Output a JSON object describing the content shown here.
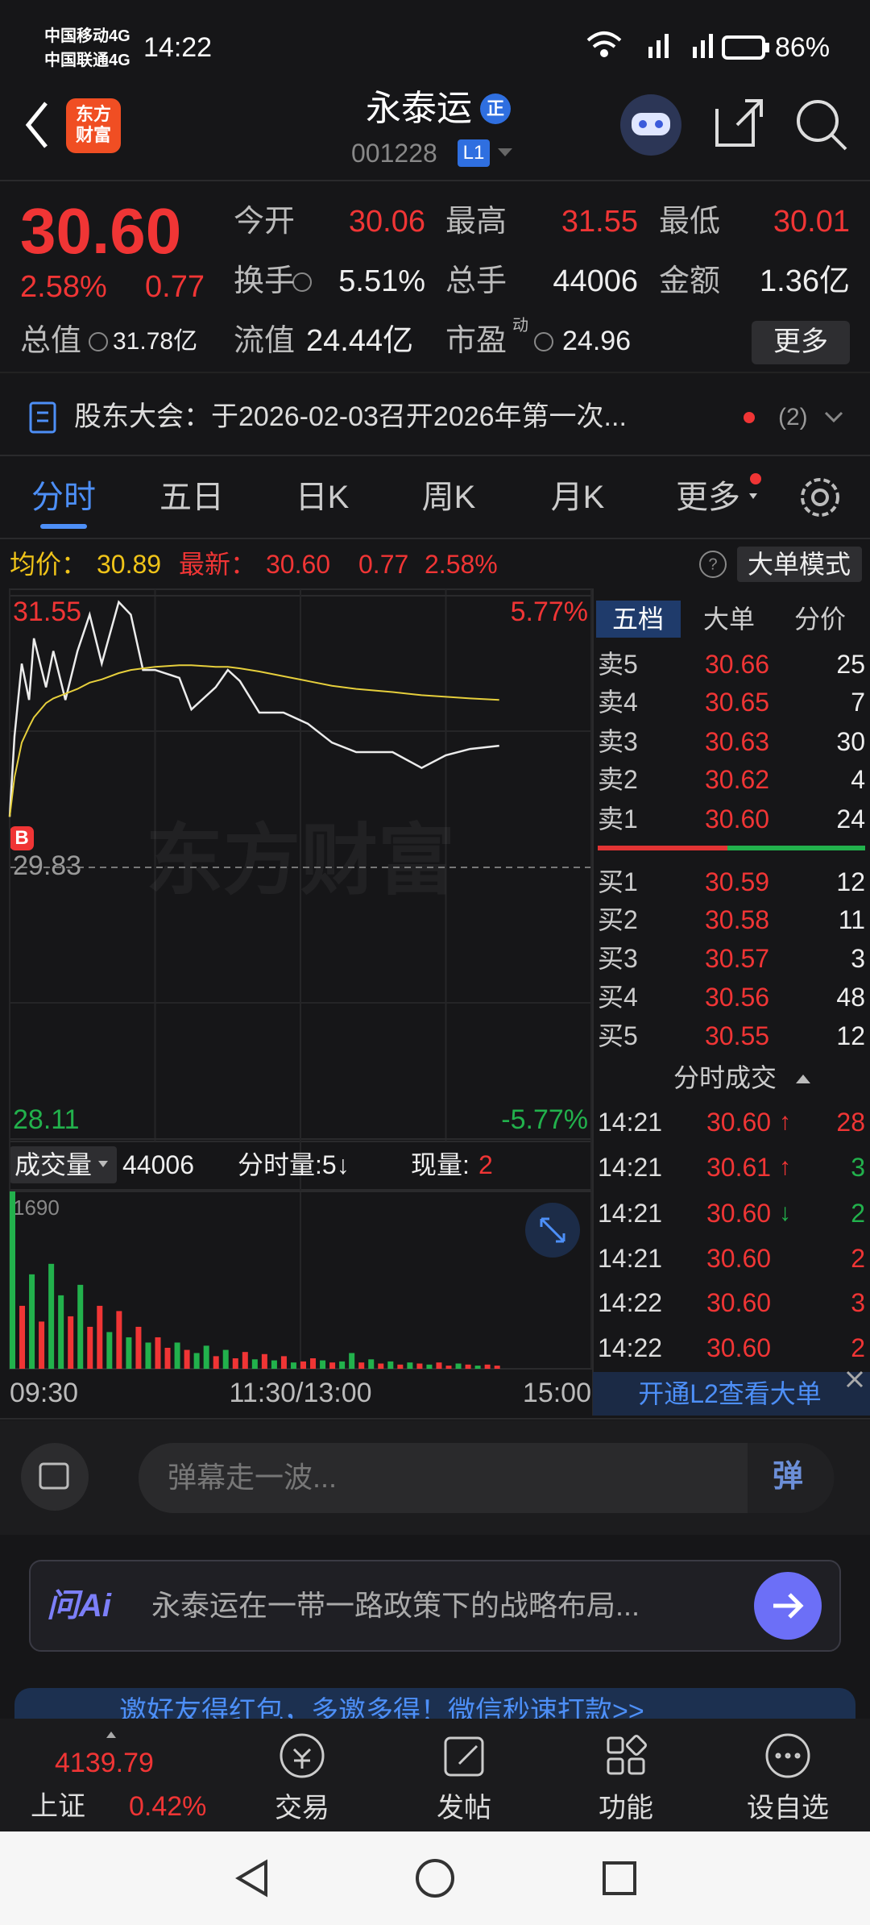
{
  "status_bar": {
    "carriers": [
      "中国移动4G",
      "中国联通4G"
    ],
    "time": "14:22",
    "battery": "86%"
  },
  "header": {
    "logo": [
      "东方",
      "财富"
    ],
    "title": "永泰运",
    "badge": "正",
    "code": "001228",
    "level": "L1"
  },
  "quote": {
    "price": "30.60",
    "change_pct": "2.58%",
    "change": "0.77",
    "fields": [
      {
        "label": "今开",
        "value": "30.06"
      },
      {
        "label": "最高",
        "value": "31.55"
      },
      {
        "label": "最低",
        "value": "30.01"
      },
      {
        "label": "换手",
        "value": "5.51%"
      },
      {
        "label": "总手",
        "value": "44006"
      },
      {
        "label": "金额",
        "value": "1.36亿"
      },
      {
        "label": "总值",
        "value": "31.78亿"
      },
      {
        "label": "流值",
        "value": "24.44亿"
      },
      {
        "label": "市盈",
        "value": "24.96",
        "sup": "动"
      }
    ],
    "more": "更多"
  },
  "notice": {
    "text": "股东大会：于2026-02-03召开2026年第一次...",
    "count": "(2)"
  },
  "tabs": [
    "分时",
    "五日",
    "日K",
    "周K",
    "月K",
    "更多"
  ],
  "info": {
    "avg_label": "均价：",
    "avg": "30.89",
    "last_label": "最新：",
    "last": "30.60",
    "change": "0.77",
    "change_pct": "2.58%",
    "mode": "大单模式"
  },
  "chart_marker": "B",
  "volume_header": {
    "label": "成交量",
    "total": "44006",
    "interval": "分时量:5↓",
    "current_label": "现量:",
    "current": "2"
  },
  "order_book": {
    "tabs": [
      "五档",
      "大单",
      "分价"
    ],
    "asks": [
      {
        "label": "卖5",
        "price": "30.66",
        "volume": "25"
      },
      {
        "label": "卖4",
        "price": "30.65",
        "volume": "7"
      },
      {
        "label": "卖3",
        "price": "30.63",
        "volume": "30"
      },
      {
        "label": "卖2",
        "price": "30.62",
        "volume": "4"
      },
      {
        "label": "卖1",
        "price": "30.60",
        "volume": "24"
      }
    ],
    "bids": [
      {
        "label": "买1",
        "price": "30.59",
        "volume": "12"
      },
      {
        "label": "买2",
        "price": "30.58",
        "volume": "11"
      },
      {
        "label": "买3",
        "price": "30.57",
        "volume": "3"
      },
      {
        "label": "买4",
        "price": "30.56",
        "volume": "48"
      },
      {
        "label": "买5",
        "price": "30.55",
        "volume": "12"
      }
    ]
  },
  "trades": {
    "title": "分时成交",
    "rows": [
      {
        "time": "14:21",
        "price": "30.60",
        "arrow": "↑",
        "volume": "28",
        "color": "#f03535"
      },
      {
        "time": "14:21",
        "price": "30.61",
        "arrow": "↑",
        "volume": "3",
        "color": "#22b14c"
      },
      {
        "time": "14:21",
        "price": "30.60",
        "arrow": "↓",
        "volume": "2",
        "color": "#22b14c"
      },
      {
        "time": "14:21",
        "price": "30.60",
        "volume": "2",
        "color": "#f03535"
      },
      {
        "time": "14:22",
        "price": "30.60",
        "volume": "3",
        "color": "#f03535"
      },
      {
        "time": "14:22",
        "price": "30.60",
        "volume": "2",
        "color": "#f03535"
      }
    ]
  },
  "l2_banner": "开通L2查看大单",
  "danmaku": {
    "placeholder": "弹幕走一波...",
    "button": "弹"
  },
  "ai": {
    "logo": "问Ai",
    "prompt": "永泰运在一带一路政策下的战略布局..."
  },
  "ad": "邀好友得红包，多邀多得！微信秒速打款>>",
  "nav": {
    "index_value": "4139.79",
    "index_name": "上证",
    "index_change": "0.42%",
    "items": [
      "交易",
      "发帖",
      "功能",
      "设自选"
    ]
  },
  "chart_data": [
    {
      "type": "line",
      "watermark": "东方财富",
      "x": [
        0,
        2,
        5,
        8,
        10,
        15,
        18,
        23,
        28,
        33,
        38,
        45,
        50,
        55,
        60,
        70,
        75,
        85,
        90,
        95,
        103,
        113,
        123,
        133,
        143,
        158,
        170,
        180,
        190,
        202
      ],
      "xlim": [
        0,
        240
      ],
      "xticks": [
        {
          "value": 0,
          "label": "09:30"
        },
        {
          "value": 120,
          "label": "11:30/13:00"
        },
        {
          "value": 240,
          "label": "15:00"
        }
      ],
      "ylim": [
        28.11,
        31.55
      ],
      "yticks": [
        28.11,
        29.83,
        31.55
      ],
      "y2lim": [
        -5.77,
        5.77
      ],
      "y2ticks": [
        {
          "value": -5.77,
          "label": "-5.77%"
        },
        {
          "value": 5.77,
          "label": "5.77%"
        }
      ],
      "series": [
        {
          "color": "#ececec",
          "values": [
            30.15,
            30.66,
            31.12,
            30.89,
            31.28,
            30.97,
            31.2,
            30.89,
            31.2,
            31.43,
            31.12,
            31.51,
            31.43,
            31.08,
            31.08,
            31.03,
            30.83,
            30.97,
            31.08,
            31.01,
            30.81,
            30.81,
            30.74,
            30.62,
            30.56,
            30.56,
            30.46,
            30.54,
            30.58,
            30.6
          ]
        },
        {
          "color": "#e6cf3c",
          "values": [
            30.15,
            30.4,
            30.62,
            30.72,
            30.78,
            30.87,
            30.9,
            30.93,
            30.96,
            31.0,
            31.02,
            31.06,
            31.08,
            31.09,
            31.1,
            31.11,
            31.11,
            31.1,
            31.1,
            31.09,
            31.07,
            31.04,
            31.01,
            30.98,
            30.96,
            30.94,
            30.92,
            30.91,
            30.9,
            30.89
          ]
        }
      ]
    },
    {
      "type": "bar",
      "x": [
        0,
        4,
        8,
        12,
        16,
        20,
        24,
        28,
        32,
        36,
        40,
        44,
        48,
        52,
        56,
        60,
        64,
        68,
        72,
        76,
        80,
        84,
        88,
        92,
        96,
        100,
        104,
        108,
        112,
        116,
        120,
        124,
        128,
        132,
        136,
        140,
        144,
        148,
        152,
        156,
        160,
        164,
        168,
        172,
        176,
        180,
        184,
        188,
        192,
        196,
        200
      ],
      "xlim": [
        0,
        240
      ],
      "ylim": [
        0,
        1690
      ],
      "yticks": [
        1690
      ],
      "values": [
        1690,
        600,
        900,
        450,
        1000,
        700,
        500,
        800,
        400,
        600,
        350,
        550,
        300,
        400,
        250,
        300,
        200,
        250,
        180,
        150,
        220,
        120,
        180,
        100,
        160,
        90,
        140,
        80,
        120,
        60,
        70,
        100,
        80,
        60,
        70,
        150,
        60,
        90,
        50,
        70,
        40,
        60,
        50,
        40,
        60,
        30,
        50,
        40,
        30,
        40,
        30
      ],
      "colors": [
        "#22b14c",
        "#f03535",
        "#22b14c",
        "#f03535",
        "#22b14c",
        "#22b14c",
        "#f03535",
        "#22b14c",
        "#f03535",
        "#f03535",
        "#22b14c",
        "#f03535",
        "#22b14c",
        "#f03535",
        "#22b14c",
        "#f03535",
        "#f03535",
        "#22b14c",
        "#f03535",
        "#22b14c",
        "#22b14c",
        "#f03535",
        "#22b14c",
        "#f03535",
        "#f03535",
        "#22b14c",
        "#f03535",
        "#22b14c",
        "#f03535",
        "#22b14c",
        "#f03535",
        "#f03535",
        "#22b14c",
        "#f03535",
        "#22b14c",
        "#22b14c",
        "#f03535",
        "#22b14c",
        "#f03535",
        "#22b14c",
        "#f03535",
        "#22b14c",
        "#f03535",
        "#22b14c",
        "#f03535",
        "#f03535",
        "#22b14c",
        "#f03535",
        "#22b14c",
        "#f03535",
        "#f03535"
      ]
    }
  ]
}
